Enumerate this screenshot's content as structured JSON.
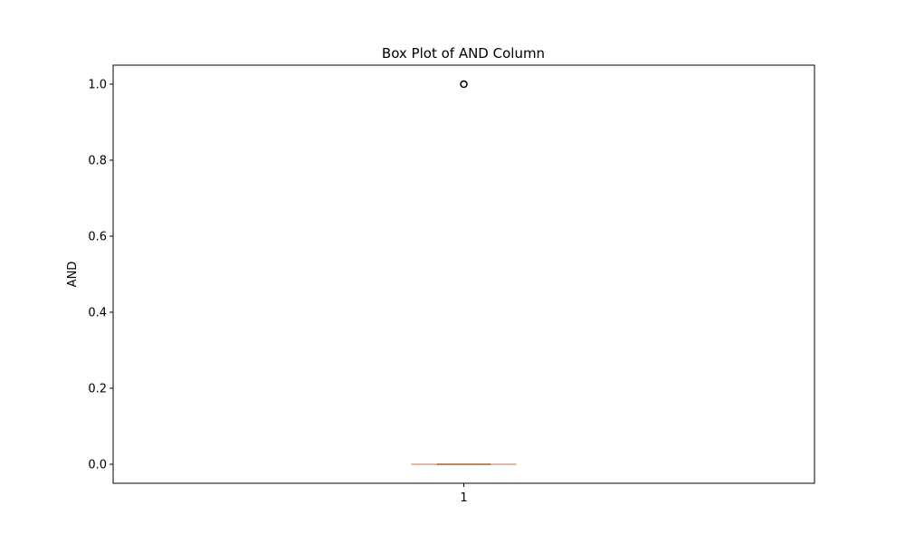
{
  "chart_data": {
    "type": "box",
    "title": "Box Plot of AND Column",
    "xlabel": "",
    "ylabel": "AND",
    "categories": [
      "1"
    ],
    "boxes": [
      {
        "category": "1",
        "whisker_low": 0.0,
        "q1": 0.0,
        "median": 0.0,
        "q3": 0.0,
        "whisker_high": 0.0,
        "outliers": [
          1.0
        ]
      }
    ],
    "ylim": [
      -0.05,
      1.05
    ],
    "yticks": [
      0.0,
      0.2,
      0.4,
      0.6,
      0.8,
      1.0
    ],
    "ytick_labels": [
      "0.0",
      "0.2",
      "0.4",
      "0.6",
      "0.8",
      "1.0"
    ],
    "grid": false,
    "colors": {
      "box": "#000000",
      "median": "#dd8452",
      "outlier_edge": "#000000"
    }
  }
}
